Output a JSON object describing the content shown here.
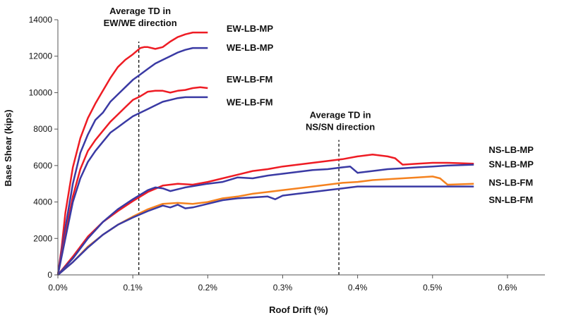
{
  "chart_data": {
    "type": "line",
    "xlabel": "Roof Drift (%)",
    "ylabel": "Base Shear (kips)",
    "xlim": [
      0,
      0.65
    ],
    "ylim": [
      0,
      14000
    ],
    "xticks": [
      0,
      0.1,
      0.2,
      0.3,
      0.4,
      0.5,
      0.6
    ],
    "xtick_labels": [
      "0.0%",
      "0.1%",
      "0.2%",
      "0.3%",
      "0.4%",
      "0.5%",
      "0.6%"
    ],
    "yticks": [
      0,
      2000,
      4000,
      6000,
      8000,
      10000,
      12000,
      14000
    ],
    "ytick_labels": [
      "0",
      "2000",
      "4000",
      "6000",
      "8000",
      "10000",
      "12000",
      "14000"
    ],
    "grid": false,
    "series": [
      {
        "name": "EW-LB-MP",
        "color": "#ee1c24",
        "x": [
          0,
          0.005,
          0.01,
          0.02,
          0.03,
          0.04,
          0.05,
          0.06,
          0.07,
          0.08,
          0.09,
          0.1,
          0.11,
          0.115,
          0.12,
          0.13,
          0.14,
          0.15,
          0.16,
          0.17,
          0.18,
          0.2
        ],
        "y": [
          0,
          1500,
          3400,
          5900,
          7500,
          8600,
          9400,
          10100,
          10800,
          11400,
          11800,
          12100,
          12450,
          12500,
          12500,
          12400,
          12500,
          12800,
          13050,
          13200,
          13300,
          13300
        ]
      },
      {
        "name": "WE-LB-MP",
        "color": "#3a3aa4",
        "x": [
          0,
          0.01,
          0.02,
          0.03,
          0.04,
          0.05,
          0.06,
          0.07,
          0.08,
          0.09,
          0.1,
          0.11,
          0.12,
          0.13,
          0.14,
          0.15,
          0.16,
          0.17,
          0.18,
          0.2
        ],
        "y": [
          0,
          2600,
          5000,
          6700,
          7700,
          8500,
          8900,
          9500,
          9900,
          10300,
          10700,
          11000,
          11300,
          11600,
          11800,
          12000,
          12200,
          12350,
          12450,
          12450
        ]
      },
      {
        "name": "EW-LB-FM",
        "color": "#ee1c24",
        "x": [
          0,
          0.01,
          0.02,
          0.03,
          0.04,
          0.05,
          0.06,
          0.07,
          0.08,
          0.09,
          0.1,
          0.11,
          0.12,
          0.13,
          0.14,
          0.15,
          0.16,
          0.17,
          0.18,
          0.19,
          0.2
        ],
        "y": [
          0,
          2200,
          4300,
          5800,
          6800,
          7400,
          7900,
          8400,
          8800,
          9200,
          9600,
          9800,
          10050,
          10100,
          10100,
          10000,
          10100,
          10150,
          10250,
          10300,
          10250
        ]
      },
      {
        "name": "WE-LB-FM",
        "color": "#3a3aa4",
        "x": [
          0,
          0.01,
          0.02,
          0.03,
          0.04,
          0.05,
          0.06,
          0.07,
          0.08,
          0.09,
          0.1,
          0.11,
          0.12,
          0.13,
          0.14,
          0.15,
          0.16,
          0.17,
          0.2
        ],
        "y": [
          0,
          2000,
          4000,
          5300,
          6200,
          6800,
          7300,
          7800,
          8100,
          8400,
          8700,
          8900,
          9100,
          9300,
          9500,
          9600,
          9700,
          9750,
          9750
        ]
      },
      {
        "name": "NS-LB-MP",
        "color": "#ee1c24",
        "x": [
          0,
          0.02,
          0.04,
          0.06,
          0.08,
          0.1,
          0.12,
          0.14,
          0.16,
          0.18,
          0.2,
          0.22,
          0.24,
          0.26,
          0.28,
          0.3,
          0.32,
          0.34,
          0.36,
          0.38,
          0.4,
          0.42,
          0.44,
          0.45,
          0.46,
          0.48,
          0.5,
          0.52,
          0.555
        ],
        "y": [
          0,
          1000,
          2100,
          2900,
          3500,
          4050,
          4550,
          4900,
          5000,
          4950,
          5100,
          5300,
          5500,
          5700,
          5800,
          5950,
          6050,
          6150,
          6250,
          6350,
          6500,
          6600,
          6500,
          6400,
          6050,
          6100,
          6150,
          6150,
          6100
        ]
      },
      {
        "name": "SN-LB-MP",
        "color": "#3a3aa4",
        "x": [
          0,
          0.02,
          0.04,
          0.06,
          0.08,
          0.1,
          0.12,
          0.13,
          0.14,
          0.15,
          0.17,
          0.2,
          0.22,
          0.24,
          0.26,
          0.28,
          0.3,
          0.32,
          0.34,
          0.36,
          0.38,
          0.39,
          0.4,
          0.42,
          0.44,
          0.46,
          0.48,
          0.5,
          0.52,
          0.555
        ],
        "y": [
          0,
          900,
          2000,
          2900,
          3600,
          4150,
          4650,
          4800,
          4750,
          4600,
          4800,
          5000,
          5100,
          5350,
          5300,
          5450,
          5550,
          5650,
          5750,
          5800,
          5900,
          5950,
          5600,
          5700,
          5800,
          5850,
          5900,
          5950,
          6000,
          6050
        ]
      },
      {
        "name": "NS-LB-FM",
        "color": "#f5821f",
        "x": [
          0,
          0.02,
          0.04,
          0.06,
          0.08,
          0.1,
          0.12,
          0.14,
          0.16,
          0.18,
          0.2,
          0.22,
          0.24,
          0.26,
          0.28,
          0.3,
          0.32,
          0.34,
          0.36,
          0.38,
          0.4,
          0.42,
          0.44,
          0.46,
          0.48,
          0.5,
          0.51,
          0.52,
          0.555
        ],
        "y": [
          0,
          700,
          1550,
          2200,
          2750,
          3200,
          3600,
          3900,
          3950,
          3900,
          4000,
          4200,
          4300,
          4450,
          4550,
          4650,
          4750,
          4850,
          4950,
          5050,
          5100,
          5200,
          5250,
          5300,
          5350,
          5400,
          5300,
          4950,
          5000
        ]
      },
      {
        "name": "SN-LB-FM",
        "color": "#3a3aa4",
        "x": [
          0,
          0.02,
          0.04,
          0.06,
          0.08,
          0.1,
          0.12,
          0.14,
          0.15,
          0.16,
          0.17,
          0.18,
          0.2,
          0.22,
          0.24,
          0.26,
          0.28,
          0.29,
          0.3,
          0.32,
          0.34,
          0.36,
          0.38,
          0.4,
          0.45,
          0.5,
          0.555
        ],
        "y": [
          0,
          700,
          1500,
          2200,
          2750,
          3150,
          3500,
          3800,
          3700,
          3850,
          3650,
          3700,
          3900,
          4100,
          4200,
          4250,
          4300,
          4150,
          4350,
          4450,
          4550,
          4650,
          4750,
          4850,
          4850,
          4850,
          4850
        ]
      }
    ],
    "series_labels": [
      {
        "text": "EW-LB-MP",
        "x": 0.225,
        "y": 13350
      },
      {
        "text": "WE-LB-MP",
        "x": 0.225,
        "y": 12300
      },
      {
        "text": "EW-LB-FM",
        "x": 0.225,
        "y": 10550
      },
      {
        "text": "WE-LB-FM",
        "x": 0.225,
        "y": 9300
      },
      {
        "text": "NS-LB-MP",
        "x": 0.575,
        "y": 6700
      },
      {
        "text": "SN-LB-MP",
        "x": 0.575,
        "y": 5900
      },
      {
        "text": "NS-LB-FM",
        "x": 0.575,
        "y": 4900
      },
      {
        "text": "SN-LB-FM",
        "x": 0.575,
        "y": 3950
      }
    ],
    "annotations": [
      {
        "lines": [
          "Average TD in",
          "EW/WE direction"
        ],
        "x": 0.108,
        "text_y": 14300
      },
      {
        "lines": [
          "Average TD in",
          "NS/SN direction"
        ],
        "x": 0.375,
        "text_y": 8600
      }
    ],
    "reference_lines": [
      {
        "x": 0.108,
        "y_from": 0,
        "y_to": 12800
      },
      {
        "x": 0.375,
        "y_from": 0,
        "y_to": 7400
      }
    ]
  }
}
